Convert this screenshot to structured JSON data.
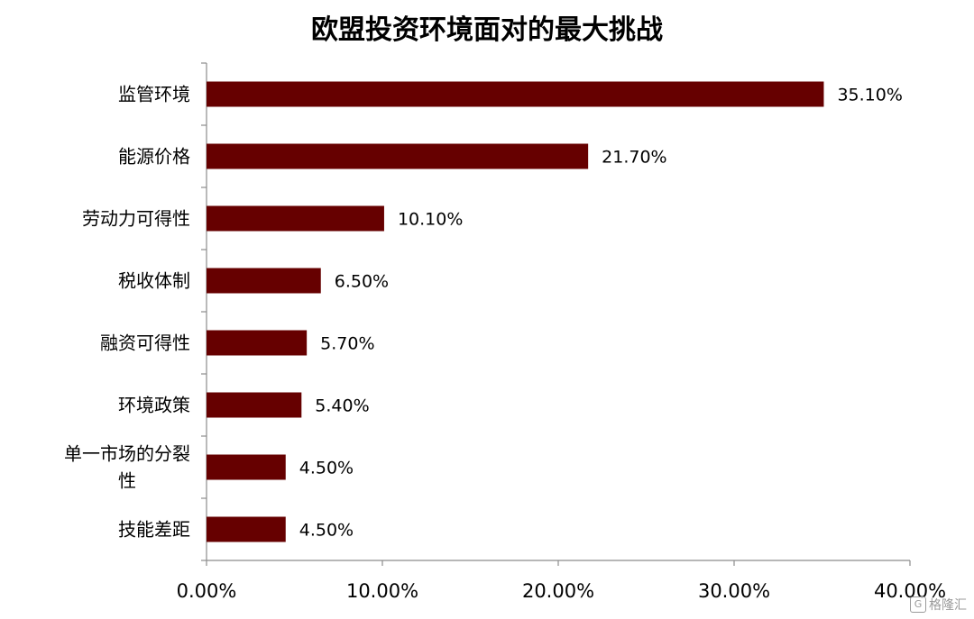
{
  "chart_data": {
    "type": "bar",
    "orientation": "horizontal",
    "title": "欧盟投资环境面对的最大挑战",
    "categories": [
      "监管环境",
      "能源价格",
      "劳动力可得性",
      "税收体制",
      "融资可得性",
      "环境政策",
      "单一市场的分裂性",
      "技能差距"
    ],
    "values": [
      35.1,
      21.7,
      10.1,
      6.5,
      5.7,
      5.4,
      4.5,
      4.5
    ],
    "value_labels": [
      "35.10%",
      "21.70%",
      "10.10%",
      "6.50%",
      "5.70%",
      "5.40%",
      "4.50%",
      "4.50%"
    ],
    "xlim": [
      0,
      40
    ],
    "x_ticks": [
      0,
      10,
      20,
      30,
      40
    ],
    "x_tick_labels": [
      "0.00%",
      "10.00%",
      "20.00%",
      "30.00%",
      "40.00%"
    ],
    "grid": false,
    "legend": "none",
    "bar_color": "#660000"
  },
  "watermark": {
    "text": "格隆汇"
  }
}
